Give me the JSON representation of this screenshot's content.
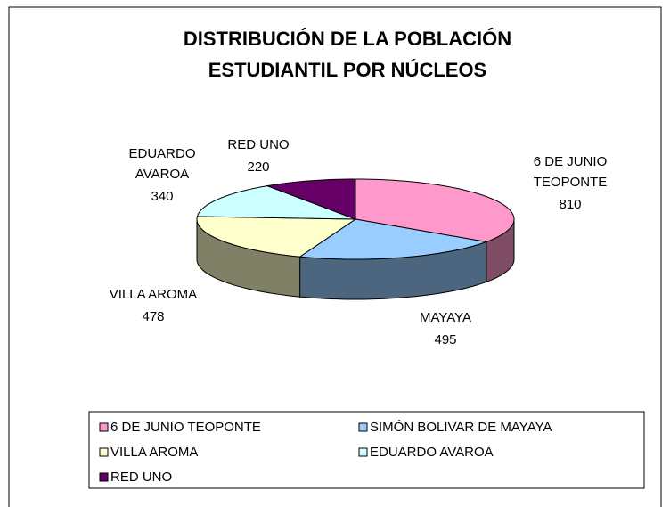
{
  "chart_data": {
    "type": "pie3d",
    "title": [
      "DISTRIBUCIÓN DE LA POBLACIÓN",
      "ESTUDIANTIL POR NÚCLEOS"
    ],
    "categories": [
      "6 DE JUNIO TEOPONTE",
      "SIMÓN BOLIVAR DE MAYAYA",
      "VILLA AROMA",
      "EDUARDO AVAROA",
      "RED UNO"
    ],
    "slice_labels": [
      [
        "6 DE JUNIO",
        "TEOPONTE"
      ],
      [
        "MAYAYA"
      ],
      [
        "VILLA AROMA"
      ],
      [
        "EDUARDO",
        "AVAROA"
      ],
      [
        "RED UNO"
      ]
    ],
    "values": [
      810,
      495,
      478,
      340,
      220
    ],
    "colors": [
      "#ff99cc",
      "#99ccff",
      "#ffffcc",
      "#ccffff",
      "#660066"
    ],
    "legend": "bottom"
  }
}
